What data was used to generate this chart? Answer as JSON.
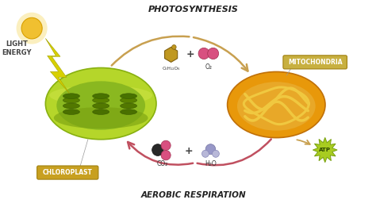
{
  "bg_color": "#ffffff",
  "title_photosynthesis": "PHOTOSYNTHESIS",
  "title_aerobic": "AEROBIC RESPIRATION",
  "label_chloroplast": "CHLOROPLAST",
  "label_mitochondria": "MITOCHONDRIA",
  "label_light": "LIGHT\nENERGY",
  "label_glucose": "C₆H₁₂O₆",
  "label_o2": "O₂",
  "label_co2": "CO₂",
  "label_h2o": "H₂O",
  "label_atp": "ATP",
  "chloroplast_outer": "#b5d62a",
  "chloroplast_inner": "#8ab820",
  "chloroplast_rim": "#c8e040",
  "chloroplast_wall": "#9dc820",
  "grana_color": "#5a8000",
  "mito_outer": "#e8980a",
  "mito_shell": "#d4800a",
  "mito_inner_bg": "#e8a828",
  "mito_cristae": "#f0c840",
  "sun_color": "#f0c030",
  "sun_glow": "#f8e080",
  "bolt_color": "#d8d000",
  "arrow_top_color": "#c8a050",
  "arrow_bottom_color": "#c05060",
  "glucose_hex": "#c09820",
  "glucose_hex_edge": "#806010",
  "o2_color": "#d85080",
  "co2_dark": "#303030",
  "co2_pink": "#d85080",
  "h2o_center": "#9898c8",
  "h2o_side": "#b8b8d8",
  "atp_color": "#a8cc20",
  "atp_edge": "#78a010",
  "label_box_color": "#c8a020",
  "mito_label_box": "#c8b040",
  "light_text_color": "#444444"
}
